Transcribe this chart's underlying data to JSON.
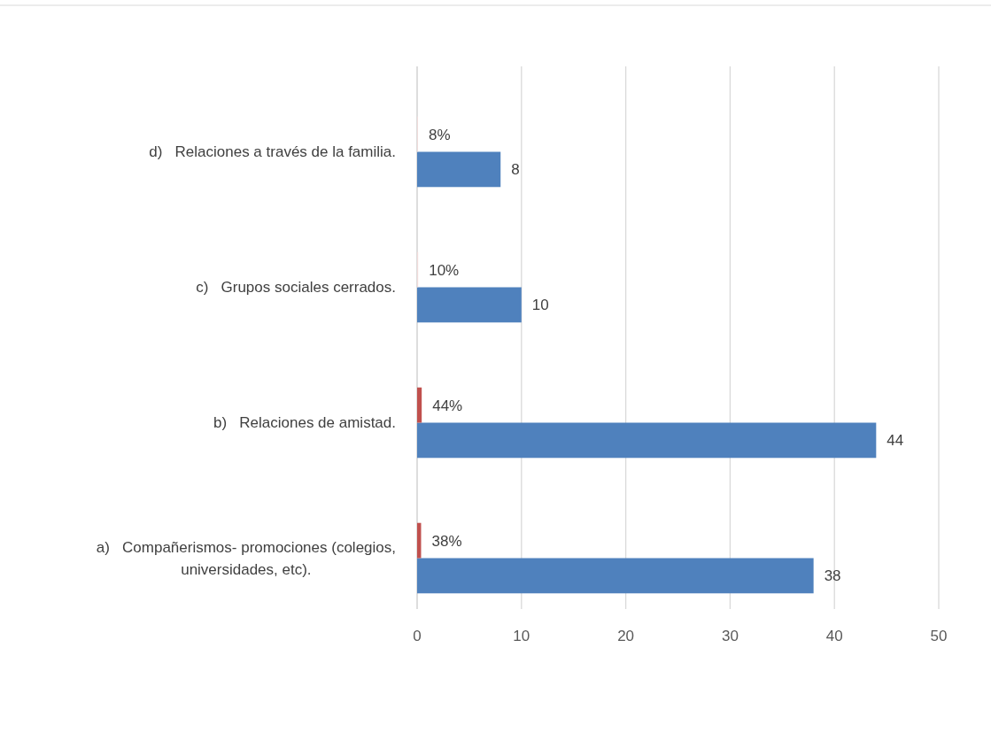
{
  "chart_data": {
    "type": "bar",
    "orientation": "horizontal",
    "categories": [
      "d)   Relaciones a través de la familia.",
      "c)   Grupos sociales cerrados.",
      "b)   Relaciones de amistad.",
      "a)   Compañerismos- promociones (colegios, universidades, etc)."
    ],
    "series": [
      {
        "color": "#4f81bd",
        "values": [
          8,
          10,
          44,
          38
        ],
        "value_labels": [
          "8",
          "10",
          "44",
          "38"
        ]
      },
      {
        "colors": [
          "#f2dcdb",
          "#f2dcdb",
          "#c0504d",
          "#c0504d"
        ],
        "values": [
          0.08,
          0.1,
          0.44,
          0.38
        ],
        "value_labels": [
          "8%",
          "10%",
          "44%",
          "38%"
        ]
      }
    ],
    "xlim": [
      0,
      50
    ],
    "xticks": [
      0,
      10,
      20,
      30,
      40,
      50
    ],
    "grid": "x"
  }
}
